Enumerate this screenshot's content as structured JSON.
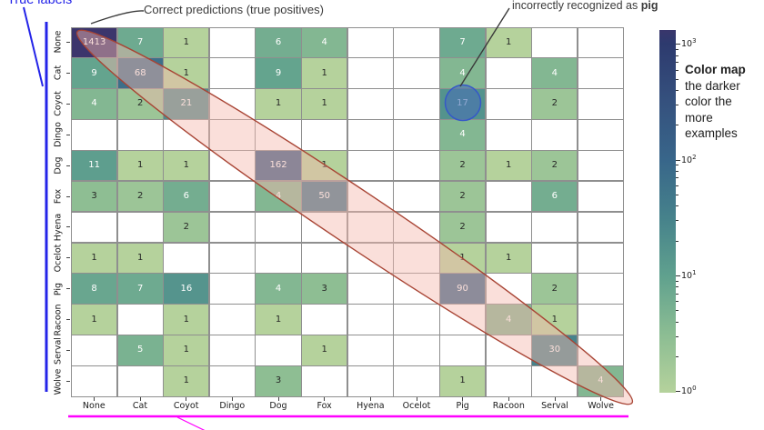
{
  "annotations": {
    "true_labels": "True labels",
    "correct_predictions": "Correct predictions (true positives)",
    "incorrect_prefix": "incorrectly recognized as ",
    "incorrect_bold": "pig"
  },
  "colorbar": {
    "title_bold": "Color map",
    "subtitle_lines": [
      "the darker",
      "color the",
      "more",
      "examples"
    ],
    "tick_exponents": [
      3,
      2,
      1,
      0
    ],
    "tick_base": "10"
  },
  "chart_data": {
    "type": "heatmap",
    "title": "",
    "x_labels": [
      "None",
      "Cat",
      "Coyot",
      "Dingo",
      "Dog",
      "Fox",
      "Hyena",
      "Ocelot",
      "Pig",
      "Racoon",
      "Serval",
      "Wolve"
    ],
    "y_labels": [
      "None",
      "Cat",
      "Coyot",
      "Dingo",
      "Dog",
      "Fox",
      "Hyena",
      "Ocelot",
      "Pig",
      "Racoon",
      "Serval",
      "Wolve"
    ],
    "matrix": [
      [
        1413,
        7,
        1,
        0,
        6,
        4,
        0,
        0,
        7,
        1,
        0,
        0
      ],
      [
        9,
        68,
        1,
        0,
        9,
        1,
        0,
        0,
        4,
        0,
        4,
        0
      ],
      [
        4,
        2,
        21,
        0,
        1,
        1,
        0,
        0,
        17,
        0,
        2,
        0
      ],
      [
        0,
        0,
        0,
        0,
        0,
        0,
        0,
        0,
        4,
        0,
        0,
        0
      ],
      [
        11,
        1,
        1,
        0,
        162,
        1,
        0,
        0,
        2,
        1,
        2,
        0
      ],
      [
        3,
        2,
        6,
        0,
        4,
        50,
        0,
        0,
        2,
        0,
        6,
        0
      ],
      [
        0,
        0,
        2,
        0,
        0,
        0,
        0,
        0,
        2,
        0,
        0,
        0
      ],
      [
        1,
        1,
        0,
        0,
        0,
        0,
        0,
        0,
        1,
        1,
        0,
        0
      ],
      [
        8,
        7,
        16,
        0,
        4,
        3,
        0,
        0,
        90,
        0,
        2,
        0
      ],
      [
        1,
        0,
        1,
        0,
        1,
        0,
        0,
        0,
        0,
        4,
        1,
        0
      ],
      [
        0,
        5,
        1,
        0,
        0,
        1,
        0,
        0,
        0,
        0,
        30,
        0
      ],
      [
        0,
        0,
        1,
        0,
        3,
        0,
        0,
        0,
        1,
        0,
        0,
        4
      ]
    ],
    "color_scale": "log",
    "value_range": [
      1,
      1413
    ],
    "colorbar_ticks": [
      1000,
      100,
      10,
      1
    ],
    "highlight_circle_cell": {
      "row": "Coyot",
      "col": "Pig",
      "value": 17
    },
    "diagonal_highlight": "true positives diagonal ellipse",
    "grid": true,
    "legend_position": "right colorbar"
  },
  "colors": {
    "colormap_stops": [
      {
        "log": 0.0,
        "color": "#b5d29c"
      },
      {
        "log": 0.5,
        "color": "#8cbd93"
      },
      {
        "log": 1.0,
        "color": "#60a18e"
      },
      {
        "log": 1.5,
        "color": "#46828b"
      },
      {
        "log": 2.0,
        "color": "#38668a"
      },
      {
        "log": 2.5,
        "color": "#35517e"
      },
      {
        "log": 3.0,
        "color": "#2d3a6e"
      },
      {
        "log": 3.2,
        "color": "#41336b"
      }
    ],
    "annotation_blue": "#2424e8",
    "callout_gray": "#3a3a3a",
    "magenta": "#ff00ff",
    "ellipse_stroke": "#a84434",
    "ellipse_fill": "#f5b7ac",
    "circle_stroke": "#3558c8",
    "circle_fill": "#4a6fb4",
    "grid_line": "#8f8f8f",
    "cell_empty": "#ffffff",
    "text_light": "#ffffff",
    "text_dark": "#262626"
  }
}
